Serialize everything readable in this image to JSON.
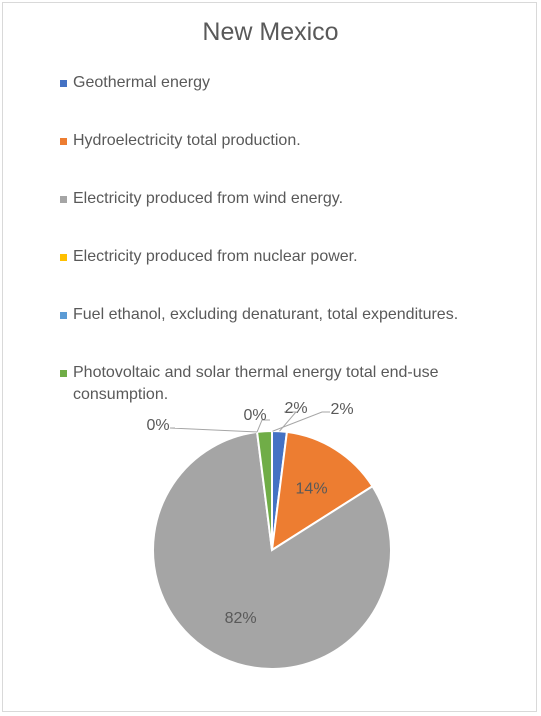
{
  "chart_data": {
    "type": "pie",
    "title": "New Mexico",
    "legend_position": "top",
    "categories": [
      "Geothermal energy",
      "Hydroelectricity total production.",
      "Electricity produced from wind energy.",
      "Electricity produced from nuclear power.",
      "Fuel ethanol, excluding denaturant, total expenditures.",
      "Photovoltaic and solar thermal energy total end-use consumption."
    ],
    "values": [
      2,
      14,
      82,
      0,
      0,
      2
    ],
    "labels": [
      "2%",
      "14%",
      "82%",
      "0%",
      "0%",
      "2%"
    ],
    "colors": [
      "#4472c4",
      "#ed7d31",
      "#a5a5a5",
      "#ffc000",
      "#5b9bd5",
      "#70ad47"
    ]
  }
}
